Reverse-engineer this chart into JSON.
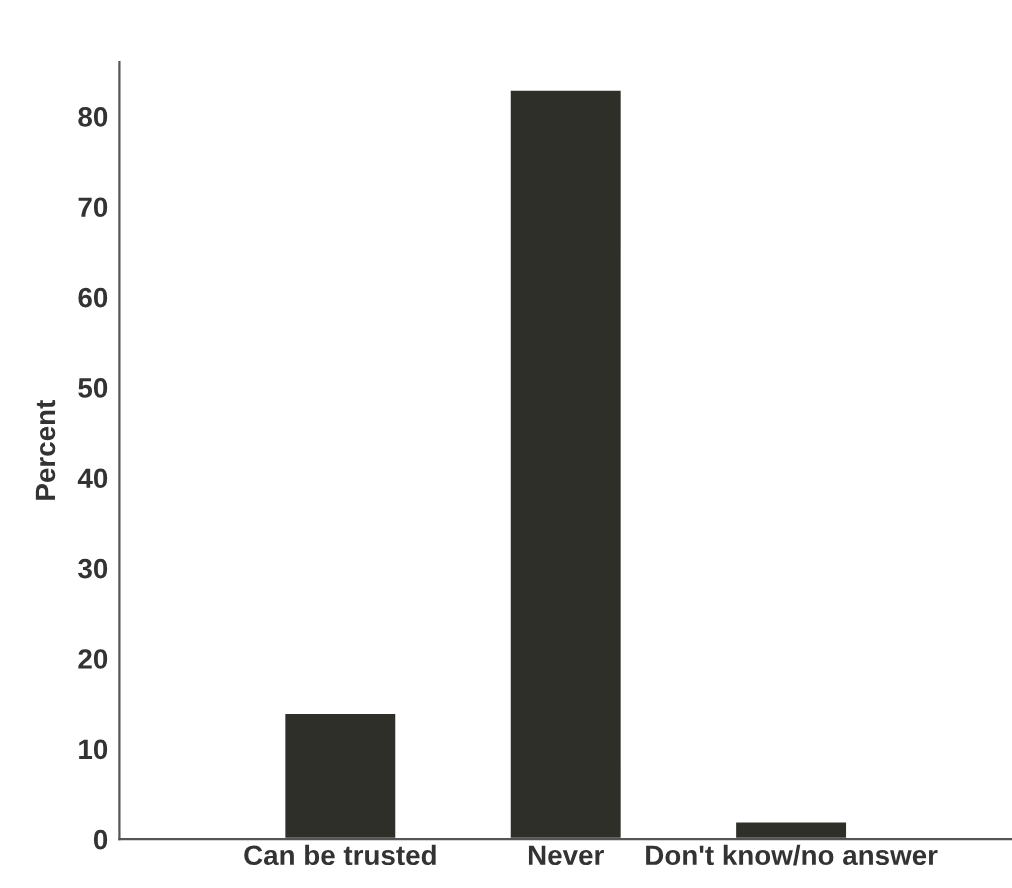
{
  "chart_data": {
    "type": "bar",
    "ylabel": "Percent",
    "categories": [
      "Can be trusted",
      "Never",
      "Don't know/no answer"
    ],
    "values": [
      14,
      83,
      2
    ],
    "color": "#2f2f2a",
    "ylim": [
      0,
      86
    ],
    "yticks": [
      0,
      10,
      20,
      30,
      40,
      50,
      60,
      70,
      80
    ],
    "grid": false
  }
}
